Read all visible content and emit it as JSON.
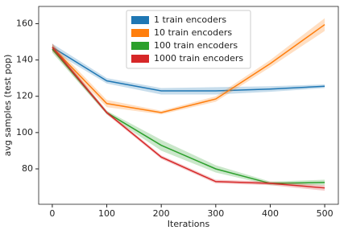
{
  "chart_data": {
    "type": "line",
    "x": [
      0,
      100,
      200,
      300,
      400,
      500
    ],
    "xlabel": "Iterations",
    "ylabel": "avg samples (test pop)",
    "xlim": [
      -25,
      525
    ],
    "xticks": [
      0,
      100,
      200,
      300,
      400,
      500
    ],
    "ylim": [
      60.5,
      169.5
    ],
    "yticks": [
      80,
      100,
      120,
      140,
      160
    ],
    "legend": "upper center",
    "series": [
      {
        "name": "1 train encoders",
        "color": "#1f77b4",
        "values": [
          147,
          128.5,
          123,
          123,
          124,
          125.5
        ],
        "lower": [
          145,
          127,
          121,
          121,
          122.5,
          124.5
        ],
        "upper": [
          149,
          130,
          124.5,
          125,
          125.5,
          126.5
        ]
      },
      {
        "name": "10 train encoders",
        "color": "#ff7f0e",
        "values": [
          147,
          116,
          111,
          118.5,
          138,
          159.5
        ],
        "lower": [
          145,
          114,
          110,
          117,
          136,
          156
        ],
        "upper": [
          149,
          118,
          112,
          120,
          140,
          163
        ]
      },
      {
        "name": "100 train encoders",
        "color": "#2ca02c",
        "values": [
          146,
          111,
          93,
          80,
          72,
          72.5
        ],
        "lower": [
          144,
          110,
          90,
          78,
          71,
          71
        ],
        "upper": [
          148,
          112,
          96,
          82,
          73,
          74
        ]
      },
      {
        "name": "1000 train encoders",
        "color": "#d62728",
        "values": [
          147,
          111,
          86.5,
          73,
          72,
          69.5
        ],
        "lower": [
          145,
          110,
          85.5,
          72,
          71,
          68
        ],
        "upper": [
          149,
          112,
          87.5,
          74,
          73,
          71
        ]
      }
    ]
  }
}
